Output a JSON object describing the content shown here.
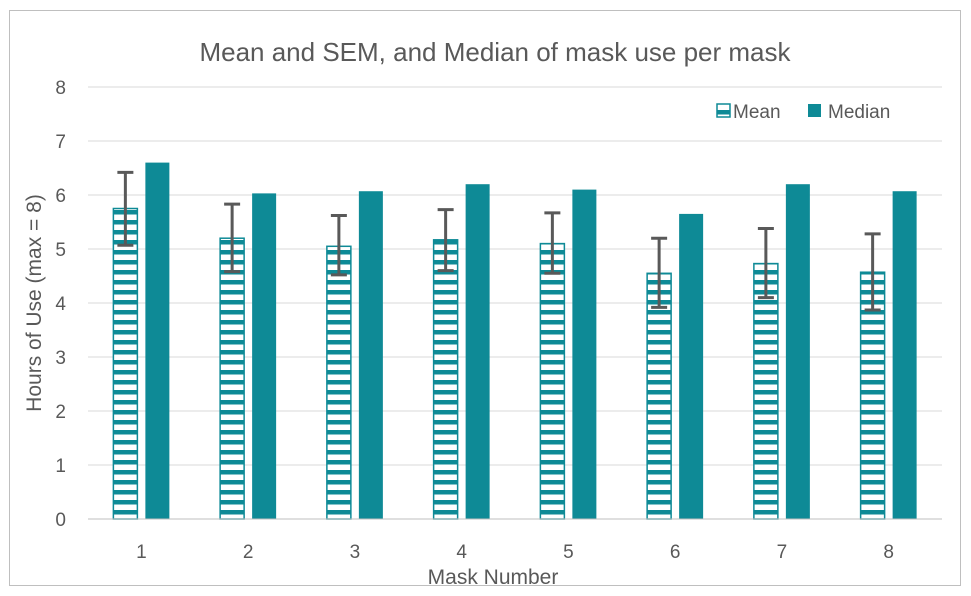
{
  "chart_data": {
    "type": "bar",
    "title": "Mean and SEM, and Median of mask use per mask",
    "xlabel": "Mask Number",
    "ylabel": "Hours of Use (max = 8)",
    "categories": [
      "1",
      "2",
      "3",
      "4",
      "5",
      "6",
      "7",
      "8"
    ],
    "ylim": [
      0,
      8
    ],
    "yticks": [
      "0",
      "1",
      "2",
      "3",
      "4",
      "5",
      "6",
      "7",
      "8"
    ],
    "grid": true,
    "legend_position": "top-right",
    "series": [
      {
        "name": "Mean",
        "values": [
          5.75,
          5.2,
          5.05,
          5.17,
          5.1,
          4.55,
          4.73,
          4.57
        ],
        "error_low": [
          5.07,
          4.58,
          4.52,
          4.6,
          4.55,
          3.92,
          4.1,
          3.87
        ],
        "error_high": [
          6.42,
          5.83,
          5.62,
          5.73,
          5.67,
          5.2,
          5.38,
          5.28
        ],
        "color": "#0e8a96",
        "pattern": "horizontal-stripes"
      },
      {
        "name": "Median",
        "values": [
          6.6,
          6.03,
          6.07,
          6.2,
          6.1,
          5.65,
          6.2,
          6.07
        ],
        "color": "#0e8a96",
        "pattern": "solid"
      }
    ],
    "colors": {
      "bar": "#0e8a96",
      "error_bar": "#595959",
      "grid": "#d9d9d9",
      "text": "#595959",
      "frame": "#bfbfbf"
    }
  }
}
